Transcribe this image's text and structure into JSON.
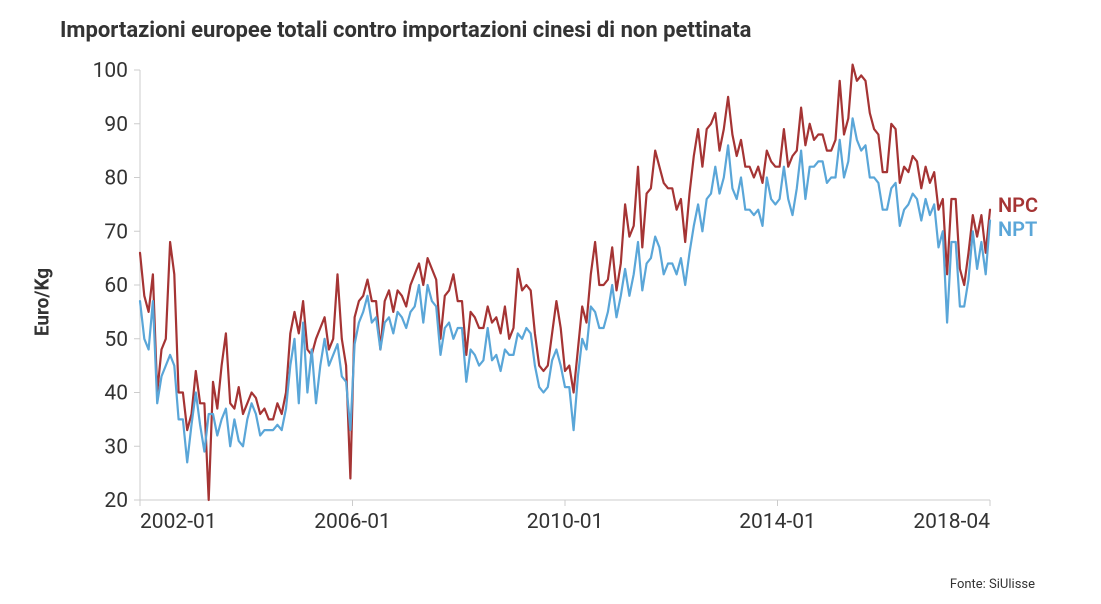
{
  "chart": {
    "type": "line",
    "title": "Importazioni europee totali contro importazioni cinesi di non pettinata",
    "title_fontsize": 22,
    "title_fontweight": 700,
    "y_axis_label": "Euro/Kg",
    "y_axis_label_fontsize": 19,
    "source_label": "Fonte: SiUlisse",
    "source_fontsize": 13,
    "background_color": "#ffffff",
    "axis_color": "#cccccc",
    "tick_color": "#cccccc",
    "text_color": "#333333",
    "tick_fontsize": 21,
    "line_width": 2.2,
    "xlim": [
      "2002-01",
      "2018-04"
    ],
    "ylim": [
      20,
      100
    ],
    "x_ticks": [
      "2002-01",
      "2006-01",
      "2010-01",
      "2014-01",
      "2018-04"
    ],
    "y_ticks": [
      20,
      30,
      40,
      50,
      60,
      70,
      80,
      90,
      100
    ],
    "series": [
      {
        "name": "NPC",
        "label": "NPC",
        "color": "#a53434",
        "label_fontsize": 20,
        "values": [
          66,
          58,
          55,
          62,
          40,
          48,
          50,
          68,
          62,
          40,
          40,
          33,
          36,
          44,
          38,
          38,
          20,
          42,
          37,
          45,
          51,
          38,
          37,
          41,
          36,
          38,
          40,
          39,
          36,
          37,
          35,
          35,
          38,
          36,
          40,
          51,
          55,
          51,
          57,
          48,
          47,
          50,
          52,
          54,
          48,
          50,
          62,
          50,
          45,
          24,
          54,
          57,
          58,
          61,
          57,
          57,
          48,
          57,
          59,
          55,
          59,
          58,
          56,
          60,
          62,
          64,
          60,
          65,
          63,
          61,
          50,
          58,
          59,
          62,
          57,
          57,
          47,
          55,
          54,
          52,
          52,
          56,
          53,
          54,
          51,
          56,
          50,
          52,
          63,
          59,
          60,
          59,
          51,
          45,
          44,
          45,
          51,
          57,
          52,
          44,
          45,
          40,
          48,
          56,
          53,
          62,
          68,
          60,
          60,
          61,
          67,
          59,
          64,
          75,
          69,
          71,
          82,
          67,
          77,
          78,
          85,
          82,
          79,
          78,
          78,
          74,
          76,
          68,
          77,
          84,
          89,
          82,
          89,
          90,
          92,
          85,
          89,
          95,
          88,
          84,
          87,
          82,
          82,
          80,
          82,
          79,
          85,
          83,
          82,
          82,
          89,
          82,
          84,
          85,
          93,
          86,
          90,
          87,
          88,
          88,
          85,
          85,
          87,
          98,
          88,
          91,
          101,
          98,
          99,
          98,
          92,
          89,
          88,
          81,
          81,
          90,
          89,
          79,
          82,
          81,
          84,
          83,
          78,
          82,
          79,
          81,
          74,
          76,
          62,
          76,
          76,
          63,
          60,
          66,
          73,
          69,
          73,
          66,
          74
        ]
      },
      {
        "name": "NPT",
        "label": "NPT",
        "color": "#5aa6d8",
        "label_fontsize": 20,
        "values": [
          57,
          50,
          48,
          57,
          38,
          43,
          45,
          47,
          45,
          35,
          35,
          27,
          34,
          40,
          34,
          29,
          36,
          36,
          32,
          35,
          37,
          30,
          35,
          31,
          30,
          35,
          38,
          36,
          32,
          33,
          33,
          33,
          34,
          33,
          37,
          45,
          50,
          38,
          53,
          40,
          48,
          38,
          45,
          50,
          45,
          47,
          49,
          43,
          42,
          33,
          49,
          53,
          55,
          58,
          53,
          54,
          48,
          53,
          54,
          51,
          55,
          54,
          52,
          55,
          56,
          60,
          53,
          60,
          57,
          56,
          47,
          52,
          53,
          50,
          52,
          52,
          42,
          48,
          47,
          45,
          46,
          52,
          46,
          47,
          44,
          48,
          47,
          47,
          51,
          50,
          52,
          51,
          45,
          41,
          40,
          41,
          46,
          48,
          45,
          41,
          41,
          33,
          43,
          50,
          48,
          56,
          55,
          52,
          52,
          55,
          60,
          54,
          58,
          63,
          58,
          62,
          68,
          59,
          64,
          65,
          69,
          67,
          62,
          64,
          64,
          62,
          65,
          60,
          66,
          71,
          75,
          70,
          76,
          77,
          82,
          77,
          80,
          86,
          78,
          76,
          80,
          74,
          74,
          73,
          74,
          71,
          80,
          76,
          75,
          76,
          82,
          76,
          73,
          78,
          85,
          76,
          82,
          82,
          83,
          83,
          79,
          80,
          80,
          87,
          80,
          83,
          91,
          87,
          85,
          86,
          80,
          80,
          79,
          74,
          74,
          78,
          79,
          71,
          74,
          75,
          77,
          76,
          72,
          76,
          73,
          75,
          67,
          70,
          53,
          68,
          68,
          56,
          56,
          61,
          70,
          63,
          68,
          62,
          72
        ]
      }
    ]
  }
}
